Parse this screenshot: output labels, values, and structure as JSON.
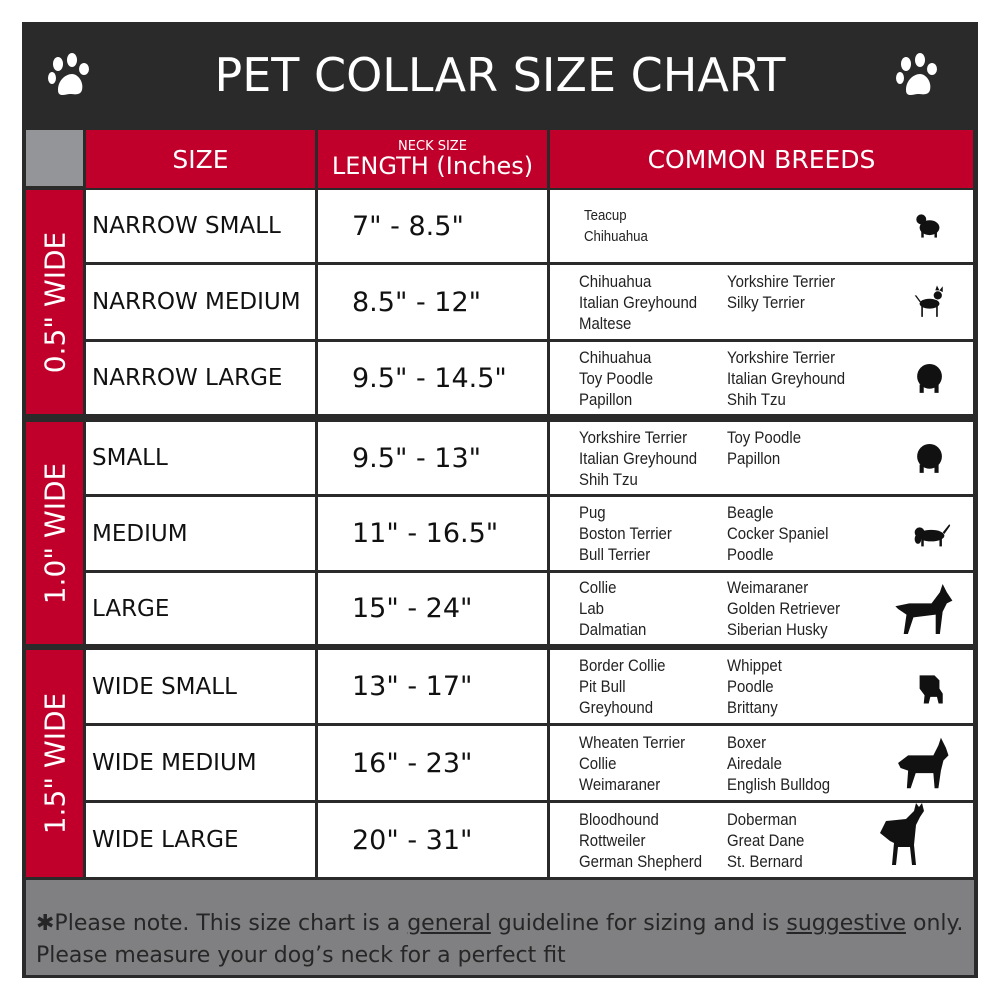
{
  "title": "PET COLLAR SIZE CHART",
  "icons": {
    "left": "paw-icon",
    "right": "paw-icon"
  },
  "colors": {
    "accent": "#c0002a",
    "dark": "#2a2a2a",
    "grey": "#808083"
  },
  "header": {
    "size": "SIZE",
    "neck_size": "NECK SIZE",
    "length": "LENGTH (Inches)",
    "breeds": "COMMON BREEDS"
  },
  "groups": [
    {
      "label": "0.5\" WIDE",
      "rows": [
        {
          "size": "NARROW SMALL",
          "length": "7\" - 8.5\"",
          "breeds_col1": [
            "Teacup",
            "Chihuahua"
          ],
          "breeds_col2": [],
          "icon": "yorkie-icon"
        },
        {
          "size": "NARROW MEDIUM",
          "length": "8.5\" - 12\"",
          "breeds_col1": [
            "Chihuahua",
            "Italian Greyhound",
            "Maltese"
          ],
          "breeds_col2": [
            "Yorkshire Terrier",
            "Silky Terrier"
          ],
          "icon": "chihuahua-icon"
        },
        {
          "size": "NARROW LARGE",
          "length": "9.5\" - 14.5\"",
          "breeds_col1": [
            "Chihuahua",
            "Toy Poodle",
            "Papillon"
          ],
          "breeds_col2": [
            "Yorkshire Terrier",
            "Italian Greyhound",
            "Shih Tzu"
          ],
          "icon": "pomeranian-icon"
        }
      ]
    },
    {
      "label": "1.0\" WIDE",
      "rows": [
        {
          "size": "SMALL",
          "length": "9.5\" - 13\"",
          "breeds_col1": [
            "Yorkshire Terrier",
            "Italian Greyhound",
            "Shih Tzu"
          ],
          "breeds_col2": [
            "Toy Poodle",
            "Papillon"
          ],
          "icon": "pomeranian-icon"
        },
        {
          "size": "MEDIUM",
          "length": "11\" - 16.5\"",
          "breeds_col1": [
            "Pug",
            "Boston Terrier",
            "Bull Terrier"
          ],
          "breeds_col2": [
            "Beagle",
            "Cocker Spaniel",
            "Poodle"
          ],
          "icon": "spaniel-icon"
        },
        {
          "size": "LARGE",
          "length": "15\" - 24\"",
          "breeds_col1": [
            "Collie",
            "Lab",
            "Dalmatian"
          ],
          "breeds_col2": [
            "Weimaraner",
            "Golden Retriever",
            "Siberian Husky"
          ],
          "icon": "shepherd-icon"
        }
      ]
    },
    {
      "label": "1.5\" WIDE",
      "rows": [
        {
          "size": "WIDE SMALL",
          "length": "13\" - 17\"",
          "breeds_col1": [
            "Border Collie",
            "Pit Bull",
            "Greyhound"
          ],
          "breeds_col2": [
            "Whippet",
            "Poodle",
            "Brittany"
          ],
          "icon": "bulldog-icon"
        },
        {
          "size": "WIDE MEDIUM",
          "length": "16\" - 23\"",
          "breeds_col1": [
            "Wheaten Terrier",
            "Collie",
            "Weimaraner"
          ],
          "breeds_col2": [
            "Boxer",
            "Airedale",
            "English Bulldog"
          ],
          "icon": "pitbull-icon"
        },
        {
          "size": "WIDE LARGE",
          "length": "20\" - 31\"",
          "breeds_col1": [
            "Bloodhound",
            "Rottweiler",
            "German Shepherd"
          ],
          "breeds_col2": [
            "Doberman",
            "Great Dane",
            "St. Bernard"
          ],
          "icon": "doberman-icon"
        }
      ]
    }
  ],
  "footer": {
    "p1": "✱Please note. This size chart is a ",
    "u1": "general",
    "p2": " guideline for sizing and is ",
    "u2": "suggestive",
    "p3": " only.",
    "line2": "Please measure your dog’s neck for a perfect fit"
  }
}
